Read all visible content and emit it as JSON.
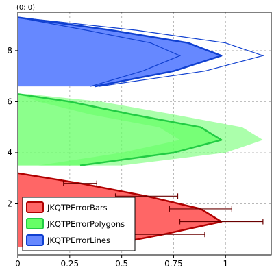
{
  "coordinate_readout": "(0; 0)",
  "chart_data": {
    "type": "area",
    "title": "",
    "xlabel": "",
    "ylabel": "",
    "xlim": [
      0,
      1.22
    ],
    "ylim": [
      0,
      9.5
    ],
    "x_ticks": [
      0,
      0.25,
      0.5,
      0.75,
      1
    ],
    "x_tick_labels": [
      "0",
      "0.25",
      "0.5",
      "0.75",
      "1"
    ],
    "y_ticks": [
      2,
      4,
      6,
      8
    ],
    "y_tick_labels": [
      "2",
      "4",
      "6",
      "8"
    ],
    "grid": true,
    "legend_position": "bottom-left",
    "series": [
      {
        "name": "JKQTPErrorBars",
        "style": "error-bars",
        "fill_color": "#ff6666",
        "line_color": "#b00000",
        "y": [
          0.3,
          0.8,
          1.3,
          1.8,
          2.3,
          2.8,
          3.2
        ],
        "x": [
          0.38,
          0.7,
          0.98,
          0.88,
          0.62,
          0.3,
          0
        ],
        "x_err": [
          0.1,
          0.2,
          0.2,
          0.15,
          0.15,
          0.08,
          0
        ]
      },
      {
        "name": "JKQTPErrorPolygons",
        "style": "error-polygons",
        "fill_color": "#66ff66",
        "line_color": "#22cc44",
        "y": [
          3.5,
          4.0,
          4.5,
          5.0,
          5.5,
          6.0,
          6.3
        ],
        "x": [
          0.3,
          0.75,
          0.98,
          0.88,
          0.55,
          0.25,
          0
        ],
        "x_err": [
          0.2,
          0.25,
          0.2,
          0.2,
          0.2,
          0.15,
          0.05
        ]
      },
      {
        "name": "JKQTPErrorLines",
        "style": "error-lines",
        "fill_color": "#6688ff",
        "line_color": "#1040d0",
        "y": [
          6.6,
          7.2,
          7.8,
          8.3,
          8.8,
          9.3
        ],
        "x": [
          0.37,
          0.75,
          0.98,
          0.82,
          0.45,
          0
        ],
        "x_err": [
          0.02,
          0.15,
          0.2,
          0.18,
          0.12,
          0
        ]
      }
    ]
  }
}
